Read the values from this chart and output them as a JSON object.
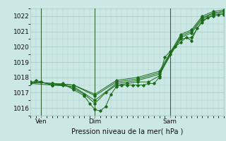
{
  "xlabel": "Pression niveau de la mer( hPa )",
  "ylim": [
    1015.5,
    1022.5
  ],
  "xlim": [
    0,
    72
  ],
  "yticks": [
    1016,
    1017,
    1018,
    1019,
    1020,
    1021,
    1022
  ],
  "xtick_positions": [
    4,
    24,
    52
  ],
  "xtick_labels": [
    "Ven",
    "Dim",
    "Sam"
  ],
  "bg_color": "#cce8e4",
  "grid_color": "#aaccca",
  "line_color": "#1a6b1a",
  "vline_positions": [
    4,
    24,
    52
  ],
  "vline_color": "#336633",
  "series": [
    [
      0.0,
      1017.6,
      2.0,
      1017.8,
      4.0,
      1017.7,
      8.0,
      1017.5,
      12.0,
      1017.6,
      16.0,
      1017.2,
      20.0,
      1016.8,
      22.0,
      1016.3,
      24.0,
      1015.9,
      26.0,
      1015.8,
      28.0,
      1016.1,
      30.0,
      1016.9,
      32.0,
      1017.4,
      34.0,
      1017.5,
      36.0,
      1017.5,
      38.0,
      1017.5,
      40.0,
      1017.5,
      42.0,
      1017.5,
      44.0,
      1017.6,
      46.0,
      1017.6,
      48.0,
      1018.0,
      50.0,
      1019.3,
      52.0,
      1019.7,
      54.0,
      1020.0,
      56.0,
      1020.3,
      58.0,
      1020.6,
      60.0,
      1020.4,
      62.0,
      1021.2,
      64.0,
      1021.6,
      66.0,
      1021.9,
      68.0,
      1022.0,
      70.0,
      1022.1,
      72.0,
      1022.1
    ],
    [
      0.0,
      1017.6,
      4.0,
      1017.7,
      8.0,
      1017.5,
      12.0,
      1017.5,
      16.0,
      1017.3,
      20.0,
      1016.9,
      24.0,
      1016.3,
      28.0,
      1017.0,
      32.0,
      1017.5,
      36.0,
      1017.6,
      40.0,
      1017.7,
      44.0,
      1017.7,
      48.0,
      1018.1,
      52.0,
      1019.5,
      56.0,
      1020.5,
      60.0,
      1020.6,
      64.0,
      1021.7,
      68.0,
      1022.1,
      72.0,
      1022.2
    ],
    [
      0.0,
      1017.6,
      8.0,
      1017.5,
      16.0,
      1017.4,
      24.0,
      1016.5,
      32.0,
      1017.6,
      40.0,
      1017.8,
      48.0,
      1018.2,
      56.0,
      1020.6,
      60.0,
      1020.9,
      64.0,
      1021.8,
      68.0,
      1022.2,
      72.0,
      1022.3
    ],
    [
      0.0,
      1017.7,
      8.0,
      1017.6,
      16.0,
      1017.5,
      24.0,
      1016.8,
      32.0,
      1017.7,
      40.0,
      1017.9,
      48.0,
      1018.3,
      56.0,
      1020.7,
      60.0,
      1021.0,
      64.0,
      1021.9,
      68.0,
      1022.2,
      72.0,
      1022.3
    ],
    [
      0.0,
      1017.7,
      8.0,
      1017.6,
      16.0,
      1017.5,
      24.0,
      1016.9,
      32.0,
      1017.8,
      40.0,
      1018.0,
      48.0,
      1018.4,
      56.0,
      1020.8,
      60.0,
      1021.1,
      64.0,
      1022.0,
      68.0,
      1022.3,
      72.0,
      1022.4
    ]
  ]
}
